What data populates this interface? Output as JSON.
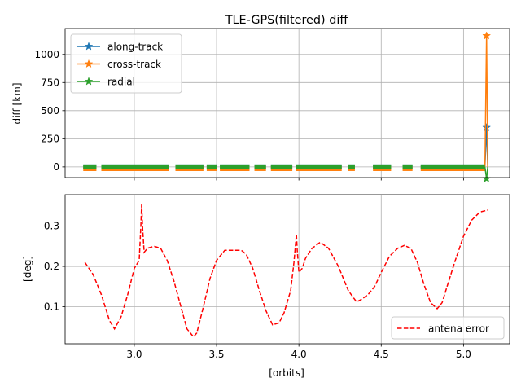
{
  "chart_data": [
    {
      "type": "line",
      "title": "TLE-GPS(filtered) diff",
      "xlabel": "",
      "ylabel": "diff [km]",
      "xlim": [
        2.58,
        5.28
      ],
      "ylim": [
        -95,
        1230
      ],
      "xticks": [
        3.0,
        3.5,
        4.0,
        4.5,
        5.0
      ],
      "show_xtick_labels": false,
      "yticks": [
        0,
        250,
        500,
        750,
        1000
      ],
      "ytick_labels": [
        "0",
        "250",
        "500",
        "750",
        "1000"
      ],
      "grid": true,
      "legend": "top-left",
      "segments": [
        [
          2.69,
          2.77
        ],
        [
          2.8,
          3.21
        ],
        [
          3.25,
          3.42
        ],
        [
          3.44,
          3.5
        ],
        [
          3.52,
          3.7
        ],
        [
          3.73,
          3.8
        ],
        [
          3.83,
          3.96
        ],
        [
          3.98,
          4.26
        ],
        [
          4.3,
          4.34
        ],
        [
          4.45,
          4.56
        ],
        [
          4.63,
          4.69
        ],
        [
          4.74,
          5.13
        ]
      ],
      "series": [
        {
          "name": "along-track",
          "color": "#1f77b4",
          "marker": "star",
          "base_value": 0,
          "points": [
            [
              5.14,
              350
            ]
          ]
        },
        {
          "name": "cross-track",
          "color": "#ff7f0e",
          "marker": "star",
          "base_value": -15,
          "points": [
            [
              5.14,
              1165
            ]
          ]
        },
        {
          "name": "radial",
          "color": "#2ca02c",
          "marker": "star",
          "base_value": 0,
          "points": [
            [
              5.14,
              -105
            ]
          ]
        }
      ]
    },
    {
      "type": "line",
      "title": "",
      "xlabel": "[orbits]",
      "ylabel": "[deg]",
      "xlim": [
        2.58,
        5.28
      ],
      "ylim": [
        0.008,
        0.378
      ],
      "xticks": [
        3.0,
        3.5,
        4.0,
        4.5,
        5.0
      ],
      "xtick_labels": [
        "3.0",
        "3.5",
        "4.0",
        "4.5",
        "5.0"
      ],
      "yticks": [
        0.1,
        0.2,
        0.3
      ],
      "ytick_labels": [
        "0.1",
        "0.2",
        "0.3"
      ],
      "grid": true,
      "legend": "bottom-right",
      "series": [
        {
          "name": "antena error",
          "color": "#ff0000",
          "style": "dashed",
          "x": [
            2.7,
            2.75,
            2.8,
            2.85,
            2.88,
            2.92,
            2.96,
            3.0,
            3.03,
            3.04,
            3.045,
            3.05,
            3.06,
            3.08,
            3.12,
            3.16,
            3.2,
            3.24,
            3.28,
            3.32,
            3.36,
            3.38,
            3.42,
            3.46,
            3.5,
            3.55,
            3.6,
            3.65,
            3.68,
            3.72,
            3.76,
            3.8,
            3.84,
            3.88,
            3.91,
            3.95,
            3.97,
            3.985,
            3.99,
            4.0,
            4.02,
            4.04,
            4.08,
            4.13,
            4.18,
            4.24,
            4.3,
            4.35,
            4.38,
            4.42,
            4.46,
            4.5,
            4.55,
            4.6,
            4.64,
            4.68,
            4.72,
            4.76,
            4.8,
            4.84,
            4.87,
            4.9,
            4.95,
            5.0,
            5.05,
            5.1,
            5.15
          ],
          "y": [
            0.21,
            0.18,
            0.13,
            0.065,
            0.045,
            0.075,
            0.13,
            0.195,
            0.215,
            0.3,
            0.355,
            0.3,
            0.235,
            0.245,
            0.25,
            0.245,
            0.215,
            0.165,
            0.105,
            0.045,
            0.025,
            0.035,
            0.1,
            0.17,
            0.215,
            0.24,
            0.24,
            0.24,
            0.23,
            0.195,
            0.14,
            0.09,
            0.055,
            0.06,
            0.085,
            0.14,
            0.21,
            0.28,
            0.24,
            0.185,
            0.195,
            0.22,
            0.245,
            0.26,
            0.245,
            0.2,
            0.14,
            0.112,
            0.118,
            0.13,
            0.15,
            0.185,
            0.225,
            0.245,
            0.252,
            0.245,
            0.21,
            0.155,
            0.11,
            0.095,
            0.11,
            0.15,
            0.215,
            0.275,
            0.315,
            0.335,
            0.34
          ]
        }
      ]
    }
  ]
}
